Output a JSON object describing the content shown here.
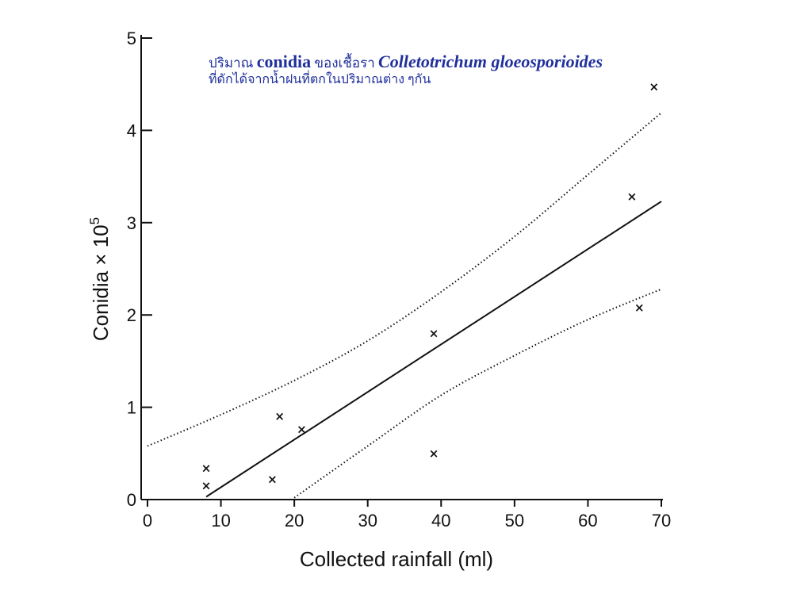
{
  "chart_data": {
    "type": "scatter",
    "title_line1": {
      "part1": "ปริมาณ ",
      "part2": "conidia",
      "part3": " ของเชื้อรา ",
      "part4": "Colletotrichum gloeosporioides"
    },
    "title_line2": "ที่ดักได้จากน้ำฝนที่ตกในปริมาณต่าง ๆกัน",
    "xlabel": "Collected rainfall (ml)",
    "ylabel": "Conidia × 10",
    "ylabel_exponent": "5",
    "xlim": [
      0,
      70
    ],
    "ylim": [
      0,
      5
    ],
    "x_ticks": [
      0,
      10,
      20,
      30,
      40,
      50,
      60,
      70
    ],
    "y_ticks": [
      0,
      1,
      2,
      3,
      4,
      5
    ],
    "grid": false,
    "marker_glyph": "×",
    "points": [
      {
        "x": 8,
        "y": 0.15
      },
      {
        "x": 8,
        "y": 0.34
      },
      {
        "x": 17,
        "y": 0.22
      },
      {
        "x": 18,
        "y": 0.9
      },
      {
        "x": 21,
        "y": 0.76
      },
      {
        "x": 39,
        "y": 1.8
      },
      {
        "x": 39,
        "y": 0.5
      },
      {
        "x": 66,
        "y": 3.28
      },
      {
        "x": 67,
        "y": 2.08
      },
      {
        "x": 69,
        "y": 4.47
      }
    ],
    "regression_line": [
      {
        "x": 8,
        "y": 0.03
      },
      {
        "x": 70,
        "y": 3.23
      }
    ],
    "upper_band": [
      {
        "x": 0,
        "y": 0.58
      },
      {
        "x": 10,
        "y": 0.92
      },
      {
        "x": 20,
        "y": 1.29
      },
      {
        "x": 30,
        "y": 1.72
      },
      {
        "x": 40,
        "y": 2.25
      },
      {
        "x": 50,
        "y": 2.85
      },
      {
        "x": 60,
        "y": 3.52
      },
      {
        "x": 70,
        "y": 4.19
      }
    ],
    "lower_band": [
      {
        "x": 20,
        "y": 0.02
      },
      {
        "x": 30,
        "y": 0.58
      },
      {
        "x": 40,
        "y": 1.13
      },
      {
        "x": 50,
        "y": 1.56
      },
      {
        "x": 60,
        "y": 1.95
      },
      {
        "x": 70,
        "y": 2.28
      }
    ]
  }
}
